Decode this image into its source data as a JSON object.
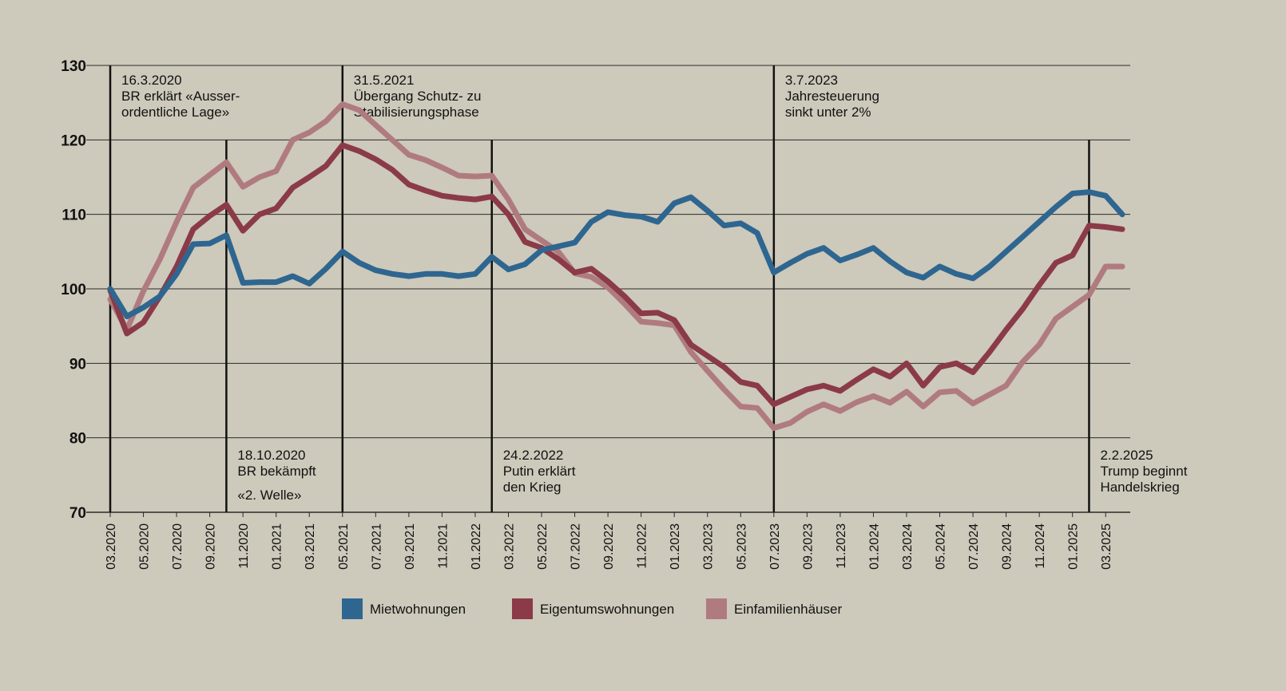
{
  "chart_data": {
    "type": "line",
    "categories": [
      "03.2020",
      null,
      "05.2020",
      null,
      "07.2020",
      null,
      "09.2020",
      null,
      "11.2020",
      null,
      "01.2021",
      null,
      "03.2021",
      null,
      "05.2021",
      null,
      "07.2021",
      null,
      "09.2021",
      null,
      "11.2021",
      null,
      "01.2022",
      null,
      "03.2022",
      null,
      "05.2022",
      null,
      "07.2022",
      null,
      "09.2022",
      null,
      "11.2022",
      null,
      "01.2023",
      null,
      "03.2023",
      null,
      "05.2023",
      null,
      "07.2023",
      null,
      "09.2023",
      null,
      "11.2023",
      null,
      "01.2024",
      null,
      "03.2024",
      null,
      "05.2024",
      null,
      "07.2024",
      null,
      "09.2024",
      null,
      "11.2024",
      null,
      "01.2025",
      null,
      "03.2025",
      null
    ],
    "series": [
      {
        "name": "Mietwohnungen",
        "color": "#2e6690",
        "values": [
          100,
          96.3,
          97.5,
          99,
          102,
          106,
          106.1,
          107.2,
          100.8,
          100.9,
          100.9,
          101.7,
          100.7,
          102.7,
          105,
          103.5,
          102.5,
          102,
          101.7,
          102,
          102,
          101.7,
          102,
          104.3,
          102.6,
          103.3,
          105.2,
          105.7,
          106.2,
          109,
          110.3,
          109.9,
          109.7,
          109,
          111.5,
          112.3,
          110.5,
          108.5,
          108.8,
          107.5,
          102.2,
          103.5,
          104.7,
          105.5,
          103.8,
          104.6,
          105.5,
          103.7,
          102.2,
          101.5,
          103,
          102,
          101.4,
          103,
          105,
          107,
          109,
          111,
          112.8,
          113,
          112.5,
          110
        ]
      },
      {
        "name": "Eigentumswohnungen",
        "color": "#8b3a47",
        "values": [
          99.8,
          94,
          95.5,
          99,
          103,
          108,
          109.8,
          111.3,
          107.8,
          110,
          110.8,
          113.6,
          115,
          116.5,
          119.3,
          118.5,
          117.4,
          116,
          114,
          113.2,
          112.5,
          112.2,
          112,
          112.4,
          110,
          106.3,
          105.5,
          104,
          102.2,
          102.7,
          101,
          99,
          96.7,
          96.8,
          95.8,
          92.5,
          91,
          89.5,
          87.5,
          87,
          84.5,
          85.5,
          86.5,
          87,
          86.3,
          87.8,
          89.2,
          88.2,
          90,
          87,
          89.5,
          90,
          88.8,
          91.5,
          94.5,
          97.3,
          100.5,
          103.5,
          104.5,
          108.5,
          108.3,
          108
        ]
      },
      {
        "name": "Einfamilienhäuser",
        "color": "#b07b7e",
        "values": [
          98.6,
          94.5,
          99.7,
          104,
          109,
          113.6,
          115.3,
          117,
          113.7,
          115,
          115.8,
          120,
          121,
          122.5,
          124.8,
          124,
          122,
          120,
          118,
          117.3,
          116.3,
          115.2,
          115.1,
          115.2,
          112,
          108,
          106.5,
          105,
          102.1,
          101.6,
          100.2,
          98,
          95.6,
          95.4,
          95.1,
          91.5,
          89,
          86.5,
          84.2,
          84,
          81.3,
          82,
          83.5,
          84.5,
          83.6,
          84.8,
          85.6,
          84.7,
          86.2,
          84.2,
          86.1,
          86.3,
          84.6,
          85.8,
          87,
          90.2,
          92.5,
          96,
          97.6,
          99.2,
          103,
          103
        ]
      }
    ],
    "ylim": [
      70,
      130
    ],
    "yticks": [
      70,
      80,
      90,
      100,
      110,
      120,
      130
    ],
    "grid": true,
    "annotations": [
      {
        "date": "16.3.2020",
        "lines": [
          "BR erklärt «Ausser-",
          "ordentliche Lage»"
        ]
      },
      {
        "date": "18.10.2020",
        "lines": [
          "BR bekämpft",
          "«2. Welle»"
        ]
      },
      {
        "date": "31.5.2021",
        "lines": [
          "Übergang Schutz- zu",
          "Stabilisierungsphase"
        ]
      },
      {
        "date": "24.2.2022",
        "lines": [
          "Putin erklärt",
          "den Krieg"
        ]
      },
      {
        "date": "3.7.2023",
        "lines": [
          "Jahresteuerung",
          "sinkt unter 2%"
        ]
      },
      {
        "date": "2.2.2025",
        "lines": [
          "Trump beginnt",
          "Handelskrieg"
        ]
      }
    ]
  }
}
